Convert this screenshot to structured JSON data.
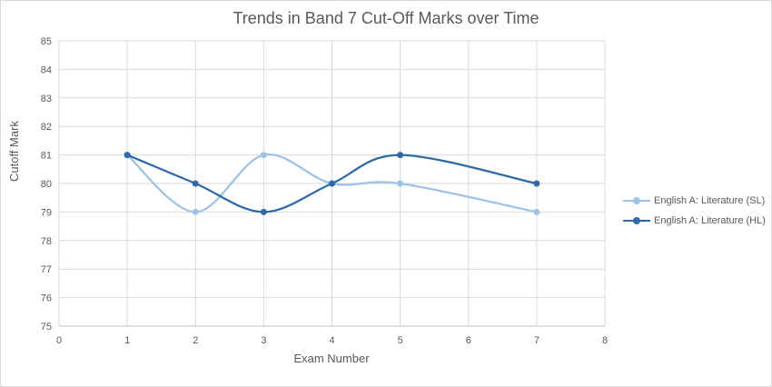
{
  "chart_data": {
    "type": "line",
    "title": "Trends in Band 7 Cut-Off Marks over Time",
    "xlabel": "Exam Number",
    "ylabel": "Cutoff Mark",
    "xlim": [
      0,
      8
    ],
    "ylim": [
      75,
      85
    ],
    "x_ticks": [
      0,
      1,
      2,
      3,
      4,
      5,
      6,
      7,
      8
    ],
    "y_ticks": [
      75,
      76,
      77,
      78,
      79,
      80,
      81,
      82,
      83,
      84,
      85
    ],
    "grid": true,
    "smoothed": true,
    "legend_position": "right",
    "series": [
      {
        "name": "English A: Literature (SL)",
        "color": "#9dc3e6",
        "x": [
          1,
          2,
          3,
          4,
          5,
          7
        ],
        "values": [
          81,
          79,
          81,
          80,
          80,
          79
        ]
      },
      {
        "name": "English A: Literature (HL)",
        "color": "#2e6aa5",
        "x": [
          1,
          2,
          3,
          4,
          5,
          7
        ],
        "values": [
          81,
          80,
          79,
          80,
          81,
          80
        ]
      }
    ]
  }
}
